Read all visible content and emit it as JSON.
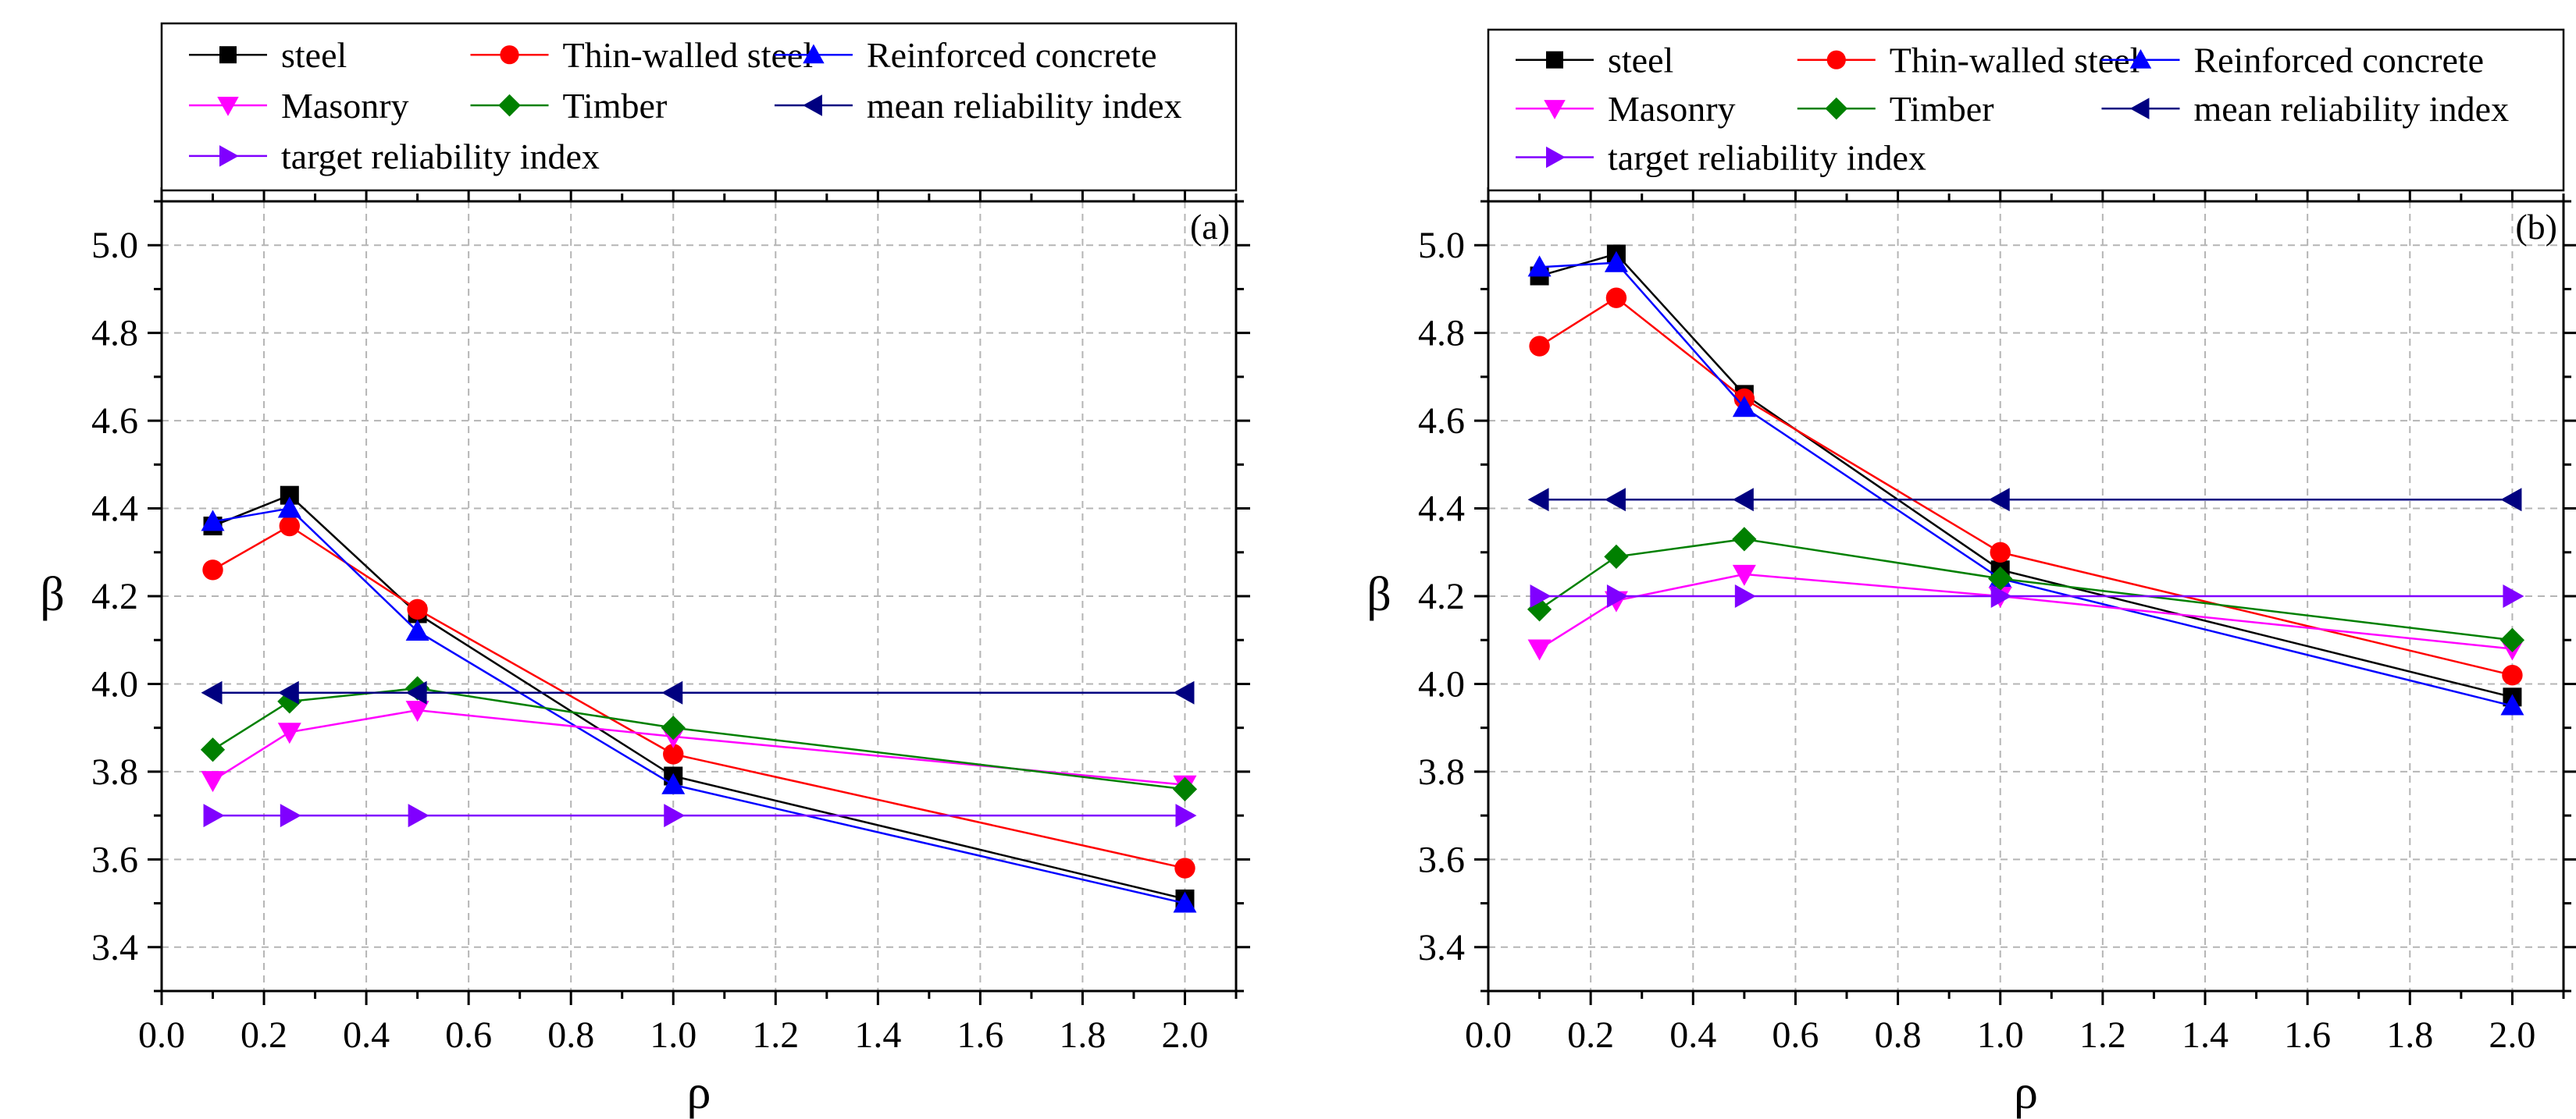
{
  "chart_data": [
    {
      "type": "line",
      "panel_label": "(a)",
      "xlabel": "ρ",
      "ylabel": "β",
      "xlim": [
        0.0,
        2.1
      ],
      "ylim": [
        3.3,
        5.1
      ],
      "xticks": [
        0.0,
        0.2,
        0.4,
        0.6,
        0.8,
        1.0,
        1.2,
        1.4,
        1.6,
        1.8,
        2.0
      ],
      "yticks": [
        3.4,
        3.6,
        3.8,
        4.0,
        4.2,
        4.4,
        4.6,
        4.8,
        5.0
      ],
      "xtick_labels": [
        "0.0",
        "0.2",
        "0.4",
        "0.6",
        "0.8",
        "1.0",
        "1.2",
        "1.4",
        "1.6",
        "1.8",
        "2.0"
      ],
      "ytick_labels": [
        "3.4",
        "3.6",
        "3.8",
        "4.0",
        "4.2",
        "4.4",
        "4.6",
        "4.8",
        "5.0"
      ],
      "grid": true,
      "legend_position": "top",
      "x": [
        0.1,
        0.25,
        0.5,
        1.0,
        2.0
      ],
      "series": [
        {
          "name": "steel",
          "color": "#000000",
          "marker": "square",
          "values": [
            4.36,
            4.43,
            4.16,
            3.79,
            3.51
          ]
        },
        {
          "name": "Thin-walled steel",
          "color": "#ff0000",
          "marker": "circle",
          "values": [
            4.26,
            4.36,
            4.17,
            3.84,
            3.58
          ]
        },
        {
          "name": "Reinforced concrete",
          "color": "#0000ff",
          "marker": "triangle-up",
          "values": [
            4.37,
            4.4,
            4.12,
            3.77,
            3.5
          ]
        },
        {
          "name": "Masonry",
          "color": "#ff00ff",
          "marker": "triangle-down",
          "values": [
            3.78,
            3.89,
            3.94,
            3.88,
            3.77
          ]
        },
        {
          "name": "Timber",
          "color": "#008000",
          "marker": "diamond",
          "values": [
            3.85,
            3.96,
            3.99,
            3.9,
            3.76
          ]
        },
        {
          "name": "mean reliability index",
          "color": "#000080",
          "marker": "triangle-left",
          "values": [
            3.98,
            3.98,
            3.98,
            3.98,
            3.98
          ]
        },
        {
          "name": "target reliability index",
          "color": "#8000ff",
          "marker": "triangle-right",
          "values": [
            3.7,
            3.7,
            3.7,
            3.7,
            3.7
          ]
        }
      ]
    },
    {
      "type": "line",
      "panel_label": "(b)",
      "xlabel": "ρ",
      "ylabel": "β",
      "xlim": [
        0.0,
        2.1
      ],
      "ylim": [
        3.3,
        5.1
      ],
      "xticks": [
        0.0,
        0.2,
        0.4,
        0.6,
        0.8,
        1.0,
        1.2,
        1.4,
        1.6,
        1.8,
        2.0
      ],
      "yticks": [
        3.4,
        3.6,
        3.8,
        4.0,
        4.2,
        4.4,
        4.6,
        4.8,
        5.0
      ],
      "xtick_labels": [
        "0.0",
        "0.2",
        "0.4",
        "0.6",
        "0.8",
        "1.0",
        "1.2",
        "1.4",
        "1.6",
        "1.8",
        "2.0"
      ],
      "ytick_labels": [
        "3.4",
        "3.6",
        "3.8",
        "4.0",
        "4.2",
        "4.4",
        "4.6",
        "4.8",
        "5.0"
      ],
      "grid": true,
      "legend_position": "top",
      "x": [
        0.1,
        0.25,
        0.5,
        1.0,
        2.0
      ],
      "series": [
        {
          "name": "steel",
          "color": "#000000",
          "marker": "square",
          "values": [
            4.93,
            4.98,
            4.66,
            4.26,
            3.97
          ]
        },
        {
          "name": "Thin-walled steel",
          "color": "#ff0000",
          "marker": "circle",
          "values": [
            4.77,
            4.88,
            4.65,
            4.3,
            4.02
          ]
        },
        {
          "name": "Reinforced concrete",
          "color": "#0000ff",
          "marker": "triangle-up",
          "values": [
            4.95,
            4.96,
            4.63,
            4.24,
            3.95
          ]
        },
        {
          "name": "Masonry",
          "color": "#ff00ff",
          "marker": "triangle-down",
          "values": [
            4.08,
            4.19,
            4.25,
            4.2,
            4.08
          ]
        },
        {
          "name": "Timber",
          "color": "#008000",
          "marker": "diamond",
          "values": [
            4.17,
            4.29,
            4.33,
            4.24,
            4.1
          ]
        },
        {
          "name": "mean reliability index",
          "color": "#000080",
          "marker": "triangle-left",
          "values": [
            4.42,
            4.42,
            4.42,
            4.42,
            4.42
          ]
        },
        {
          "name": "target reliability index",
          "color": "#8000ff",
          "marker": "triangle-right",
          "values": [
            4.2,
            4.2,
            4.2,
            4.2,
            4.2
          ]
        }
      ]
    }
  ]
}
